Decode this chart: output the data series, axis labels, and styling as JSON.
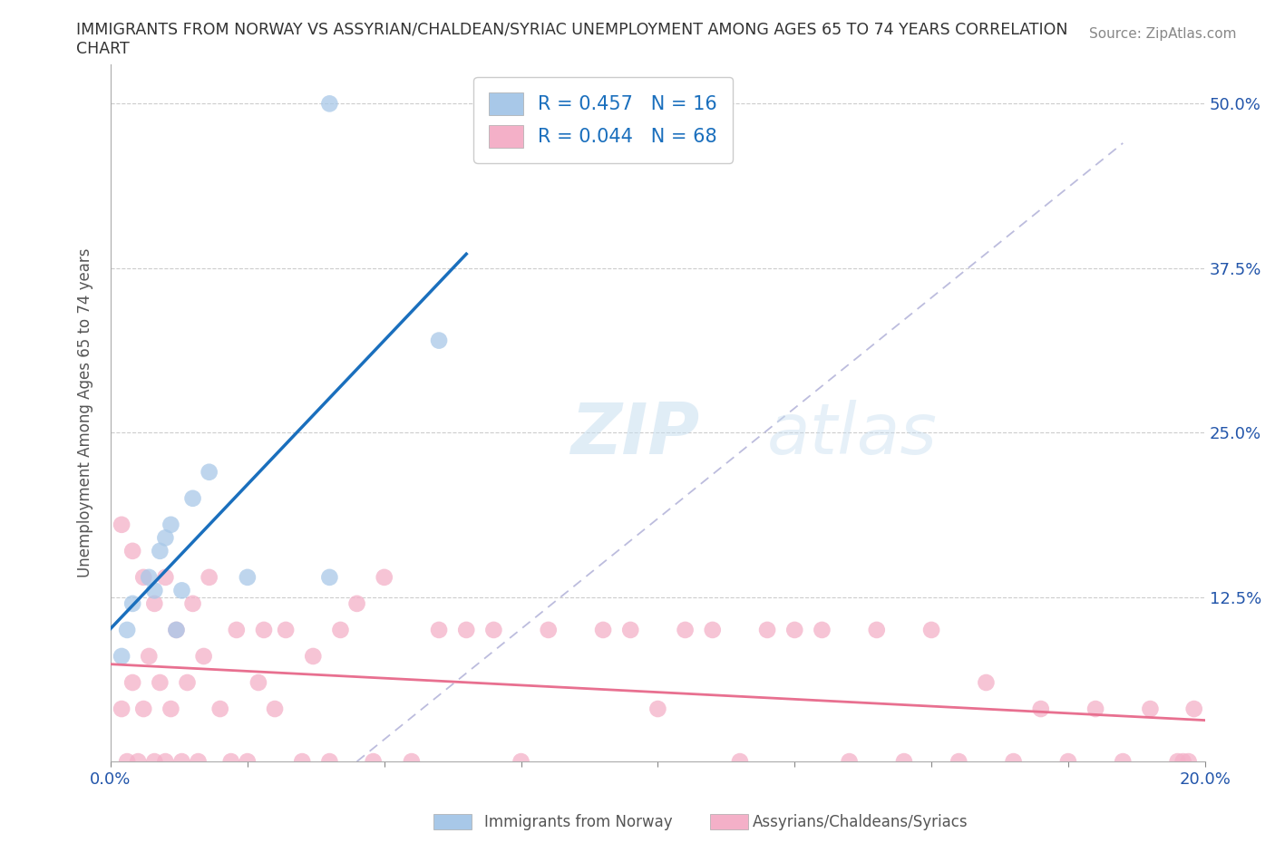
{
  "title_line1": "IMMIGRANTS FROM NORWAY VS ASSYRIAN/CHALDEAN/SYRIAC UNEMPLOYMENT AMONG AGES 65 TO 74 YEARS CORRELATION",
  "title_line2": "CHART",
  "source": "Source: ZipAtlas.com",
  "ylabel": "Unemployment Among Ages 65 to 74 years",
  "xlim": [
    0.0,
    0.2
  ],
  "ylim": [
    0.0,
    0.53
  ],
  "yticks": [
    0.0,
    0.125,
    0.25,
    0.375,
    0.5
  ],
  "ytick_labels": [
    "",
    "12.5%",
    "25.0%",
    "37.5%",
    "50.0%"
  ],
  "xticks": [
    0.0,
    0.025,
    0.05,
    0.075,
    0.1,
    0.125,
    0.15,
    0.175,
    0.2
  ],
  "xtick_labels": [
    "0.0%",
    "",
    "",
    "",
    "",
    "",
    "",
    "",
    "20.0%"
  ],
  "norway_R": 0.457,
  "norway_N": 16,
  "assyrian_R": 0.044,
  "assyrian_N": 68,
  "norway_color": "#a8c8e8",
  "assyrian_color": "#f4b0c8",
  "norway_line_color": "#1a6fbd",
  "assyrian_line_color": "#e87090",
  "watermark_zip": "ZIP",
  "watermark_atlas": "atlas",
  "legend_label_norway": "Immigrants from Norway",
  "legend_label_assyrian": "Assyrians/Chaldeans/Syriacs",
  "norway_x": [
    0.002,
    0.003,
    0.004,
    0.007,
    0.008,
    0.009,
    0.01,
    0.011,
    0.012,
    0.013,
    0.015,
    0.018,
    0.025,
    0.04,
    0.06,
    0.04
  ],
  "norway_y": [
    0.08,
    0.1,
    0.12,
    0.14,
    0.13,
    0.16,
    0.17,
    0.18,
    0.1,
    0.13,
    0.2,
    0.22,
    0.14,
    0.14,
    0.32,
    0.5
  ],
  "assyrian_x": [
    0.002,
    0.003,
    0.004,
    0.005,
    0.006,
    0.007,
    0.008,
    0.009,
    0.01,
    0.011,
    0.012,
    0.013,
    0.014,
    0.015,
    0.016,
    0.017,
    0.018,
    0.02,
    0.022,
    0.023,
    0.025,
    0.027,
    0.028,
    0.03,
    0.032,
    0.035,
    0.037,
    0.04,
    0.042,
    0.045,
    0.048,
    0.05,
    0.055,
    0.06,
    0.065,
    0.07,
    0.075,
    0.08,
    0.09,
    0.095,
    0.1,
    0.105,
    0.11,
    0.115,
    0.12,
    0.125,
    0.13,
    0.135,
    0.14,
    0.145,
    0.15,
    0.155,
    0.16,
    0.165,
    0.17,
    0.175,
    0.18,
    0.185,
    0.19,
    0.195,
    0.196,
    0.197,
    0.198,
    0.002,
    0.004,
    0.006,
    0.008,
    0.01
  ],
  "assyrian_y": [
    0.04,
    0.0,
    0.06,
    0.0,
    0.04,
    0.08,
    0.0,
    0.06,
    0.0,
    0.04,
    0.1,
    0.0,
    0.06,
    0.12,
    0.0,
    0.08,
    0.14,
    0.04,
    0.0,
    0.1,
    0.0,
    0.06,
    0.1,
    0.04,
    0.1,
    0.0,
    0.08,
    0.0,
    0.1,
    0.12,
    0.0,
    0.14,
    0.0,
    0.1,
    0.1,
    0.1,
    0.0,
    0.1,
    0.1,
    0.1,
    0.04,
    0.1,
    0.1,
    0.0,
    0.1,
    0.1,
    0.1,
    0.0,
    0.1,
    0.0,
    0.1,
    0.0,
    0.06,
    0.0,
    0.04,
    0.0,
    0.04,
    0.0,
    0.04,
    0.0,
    0.0,
    0.0,
    0.04,
    0.18,
    0.16,
    0.14,
    0.12,
    0.14
  ]
}
